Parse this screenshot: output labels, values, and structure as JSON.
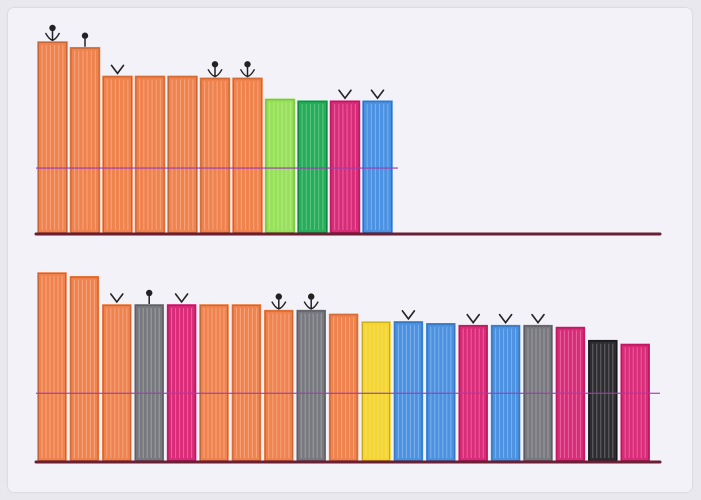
{
  "chart_data": [
    {
      "type": "bar",
      "title": "",
      "xlabel": "",
      "ylabel": "",
      "ylim": [
        0,
        100
      ],
      "reference_line": 34,
      "bars": [
        {
          "value": 100,
          "color": "#f07a3e",
          "marker": "flower"
        },
        {
          "value": 97,
          "color": "#f07a3e",
          "marker": "dot"
        },
        {
          "value": 82,
          "color": "#f07a3e",
          "marker": "vee"
        },
        {
          "value": 82,
          "color": "#f07a3e",
          "marker": "none"
        },
        {
          "value": 82,
          "color": "#f07a3e",
          "marker": "none"
        },
        {
          "value": 81,
          "color": "#f07a3e",
          "marker": "flower"
        },
        {
          "value": 81,
          "color": "#f07a3e",
          "marker": "flower"
        },
        {
          "value": 70,
          "color": "#8fe04a",
          "marker": "none"
        },
        {
          "value": 69,
          "color": "#12a84a",
          "marker": "none"
        },
        {
          "value": 69,
          "color": "#d81a6e",
          "marker": "vee"
        },
        {
          "value": 69,
          "color": "#3d8ae0",
          "marker": "vee"
        }
      ]
    },
    {
      "type": "bar",
      "title": "",
      "xlabel": "",
      "ylabel": "",
      "ylim": [
        0,
        100
      ],
      "reference_line": 36,
      "bars": [
        {
          "value": 100,
          "color": "#f07a3e",
          "marker": "none"
        },
        {
          "value": 98,
          "color": "#f07a3e",
          "marker": "none"
        },
        {
          "value": 83,
          "color": "#f07a3e",
          "marker": "vee"
        },
        {
          "value": 83,
          "color": "#6e6e74",
          "marker": "dot"
        },
        {
          "value": 83,
          "color": "#d81a6e",
          "marker": "vee"
        },
        {
          "value": 83,
          "color": "#f07a3e",
          "marker": "none"
        },
        {
          "value": 83,
          "color": "#f07a3e",
          "marker": "none"
        },
        {
          "value": 80,
          "color": "#f07a3e",
          "marker": "flower"
        },
        {
          "value": 80,
          "color": "#6e6e74",
          "marker": "flower"
        },
        {
          "value": 78,
          "color": "#f07a3e",
          "marker": "none"
        },
        {
          "value": 74,
          "color": "#f5d21e",
          "marker": "none"
        },
        {
          "value": 74,
          "color": "#3d8ae0",
          "marker": "vee"
        },
        {
          "value": 73,
          "color": "#3d8ae0",
          "marker": "none"
        },
        {
          "value": 72,
          "color": "#d81a6e",
          "marker": "vee"
        },
        {
          "value": 72,
          "color": "#3d8ae0",
          "marker": "vee"
        },
        {
          "value": 72,
          "color": "#6e6e74",
          "marker": "vee"
        },
        {
          "value": 71,
          "color": "#d81a6e",
          "marker": "none"
        },
        {
          "value": 64,
          "color": "#1c1c20",
          "marker": "none"
        },
        {
          "value": 62,
          "color": "#d81a6e",
          "marker": "none"
        }
      ]
    }
  ],
  "colors": {
    "baseline": "#6b1f35",
    "reference_line": "#9b3fb0"
  }
}
